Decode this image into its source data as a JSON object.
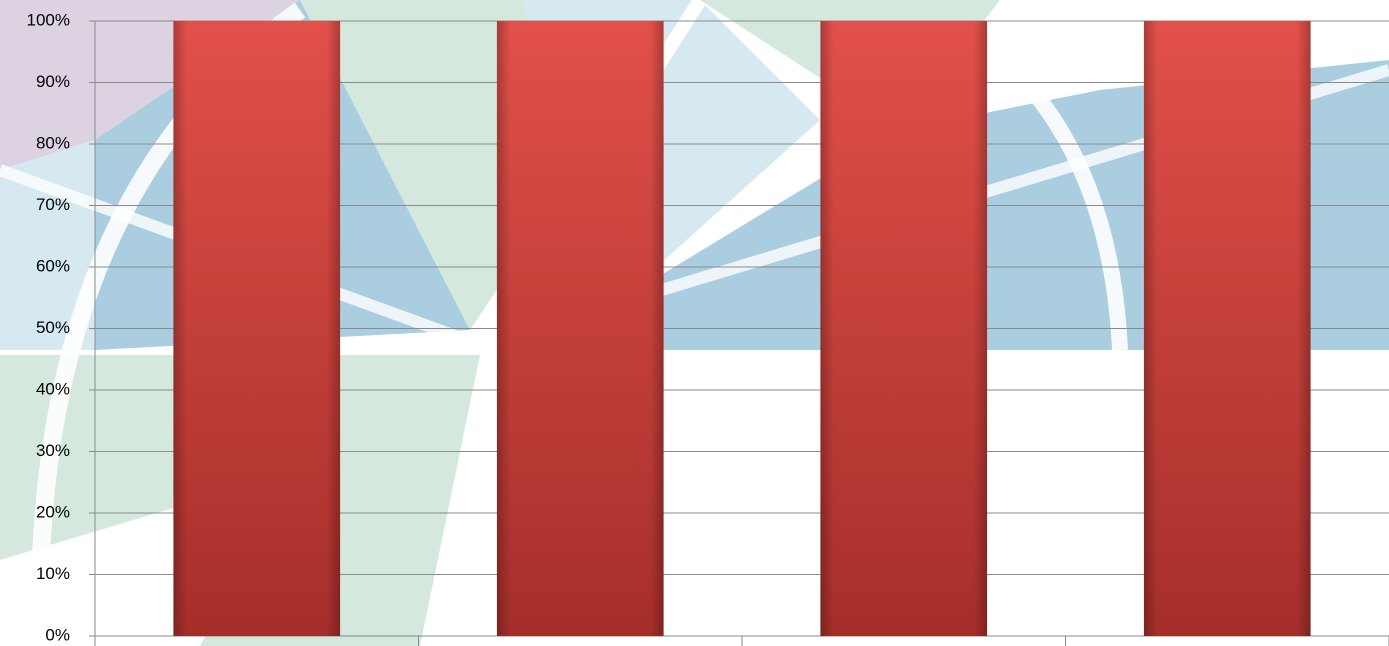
{
  "chart_data": {
    "type": "bar",
    "categories": [
      null,
      null,
      null,
      null
    ],
    "values": [
      100,
      100,
      100,
      100
    ],
    "color": "#d9413b",
    "ylim": [
      0,
      100
    ],
    "yticks": [
      {
        "value": 0,
        "label": "0%"
      },
      {
        "value": 10,
        "label": "10%"
      },
      {
        "value": 20,
        "label": "20%"
      },
      {
        "value": 30,
        "label": "30%"
      },
      {
        "value": 40,
        "label": "40%"
      },
      {
        "value": 50,
        "label": "50%"
      },
      {
        "value": 60,
        "label": "60%"
      },
      {
        "value": 70,
        "label": "70%"
      },
      {
        "value": 80,
        "label": "80%"
      },
      {
        "value": 90,
        "label": "90%"
      },
      {
        "value": 100,
        "label": "100%"
      }
    ],
    "grid": true
  }
}
